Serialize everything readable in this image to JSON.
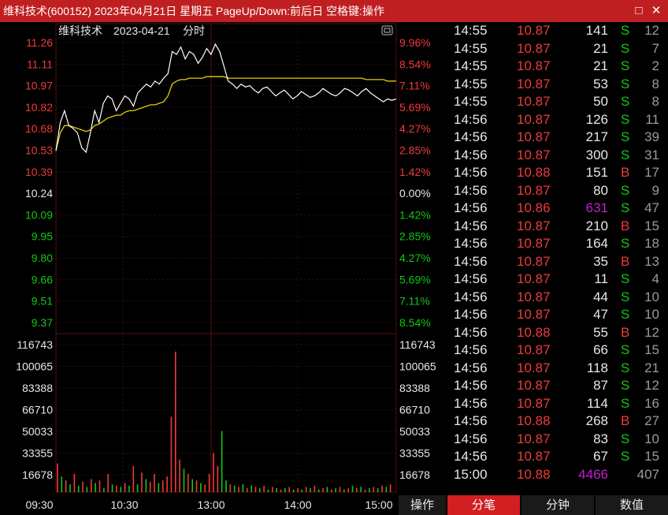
{
  "window": {
    "title": "维科技术(600152) 2023年04月21日 星期五 PageUp/Down:前后日 空格键:操作",
    "maximize_icon": "□",
    "close_icon": "✕"
  },
  "chart_header": {
    "stock_name": "维科技术",
    "date": "2023-04-21",
    "mode": "分时"
  },
  "colors": {
    "up": "#f03a3a",
    "down": "#12c812",
    "price_line": "#ffffff",
    "avg_line": "#e0d000",
    "title_bar": "#c01f21",
    "active_tab": "#d11f22"
  },
  "chart_data": {
    "type": "line",
    "title": "",
    "prev_close": 10.24,
    "price_axis": {
      "left_labels": [
        "11.26",
        "11.11",
        "10.97",
        "10.82",
        "10.68",
        "10.53",
        "10.39",
        "10.24",
        "10.09",
        "9.95",
        "9.80",
        "9.66",
        "9.51",
        "9.37"
      ],
      "right_labels": [
        "9.96%",
        "8.54%",
        "7.11%",
        "5.69%",
        "4.27%",
        "2.85%",
        "1.42%",
        "0.00%",
        "1.42%",
        "2.85%",
        "4.27%",
        "5.69%",
        "7.11%",
        "8.54%"
      ]
    },
    "volume_axis": {
      "labels": [
        "116743",
        "100065",
        "83388",
        "66710",
        "50033",
        "33355",
        "16678"
      ],
      "ylim": [
        0,
        125000
      ]
    },
    "time_labels": [
      "09:30",
      "10:30",
      "13:00",
      "14:00",
      "15:00"
    ],
    "price_series": [
      10.53,
      10.72,
      10.8,
      10.7,
      10.68,
      10.65,
      10.55,
      10.52,
      10.65,
      10.8,
      10.72,
      10.85,
      10.9,
      10.88,
      10.8,
      10.85,
      10.9,
      10.88,
      10.83,
      10.92,
      10.95,
      10.98,
      10.96,
      11.0,
      10.98,
      11.02,
      11.05,
      11.2,
      11.18,
      11.23,
      11.15,
      11.2,
      11.18,
      11.12,
      11.16,
      11.22,
      11.18,
      11.25,
      11.2,
      11.1,
      11.0,
      10.98,
      10.95,
      10.98,
      10.96,
      10.97,
      10.94,
      10.92,
      10.95,
      10.96,
      10.93,
      10.9,
      10.92,
      10.94,
      10.91,
      10.88,
      10.9,
      10.93,
      10.91,
      10.89,
      10.9,
      10.92,
      10.95,
      10.93,
      10.91,
      10.9,
      10.92,
      10.95,
      10.94,
      10.92,
      10.9,
      10.93,
      10.95,
      10.92,
      10.9,
      10.88,
      10.86,
      10.88,
      10.87,
      10.88
    ],
    "avg_series": [
      10.53,
      10.65,
      10.7,
      10.7,
      10.69,
      10.68,
      10.67,
      10.66,
      10.67,
      10.7,
      10.71,
      10.73,
      10.75,
      10.76,
      10.77,
      10.77,
      10.79,
      10.8,
      10.8,
      10.81,
      10.82,
      10.83,
      10.84,
      10.84,
      10.85,
      10.86,
      10.9,
      10.98,
      11.0,
      11.01,
      11.01,
      11.02,
      11.02,
      11.02,
      11.02,
      11.03,
      11.03,
      11.03,
      11.03,
      11.03,
      11.02,
      11.02,
      11.02,
      11.02,
      11.02,
      11.02,
      11.02,
      11.02,
      11.02,
      11.02,
      11.02,
      11.02,
      11.02,
      11.02,
      11.02,
      11.02,
      11.02,
      11.02,
      11.02,
      11.02,
      11.02,
      11.02,
      11.02,
      11.02,
      11.02,
      11.02,
      11.02,
      11.02,
      11.02,
      11.02,
      11.02,
      11.02,
      11.01,
      11.01,
      11.01,
      11.01,
      11.01,
      11.0,
      11.0,
      11.0
    ],
    "volume_bars": [
      {
        "v": 22000,
        "up": true
      },
      {
        "v": 12000,
        "up": false
      },
      {
        "v": 9000,
        "up": true
      },
      {
        "v": 6000,
        "up": false
      },
      {
        "v": 14000,
        "up": true
      },
      {
        "v": 5000,
        "up": false
      },
      {
        "v": 8000,
        "up": true
      },
      {
        "v": 4000,
        "up": false
      },
      {
        "v": 10000,
        "up": true
      },
      {
        "v": 7000,
        "up": false
      },
      {
        "v": 9000,
        "up": true
      },
      {
        "v": 3000,
        "up": false
      },
      {
        "v": 14000,
        "up": true
      },
      {
        "v": 6000,
        "up": false
      },
      {
        "v": 5000,
        "up": true
      },
      {
        "v": 4000,
        "up": false
      },
      {
        "v": 7000,
        "up": true
      },
      {
        "v": 5000,
        "up": false
      },
      {
        "v": 20000,
        "up": true
      },
      {
        "v": 6000,
        "up": false
      },
      {
        "v": 15000,
        "up": true
      },
      {
        "v": 10000,
        "up": false
      },
      {
        "v": 8000,
        "up": true
      },
      {
        "v": 14000,
        "up": true
      },
      {
        "v": 7000,
        "up": false
      },
      {
        "v": 9000,
        "up": true
      },
      {
        "v": 12000,
        "up": true
      },
      {
        "v": 58000,
        "up": true
      },
      {
        "v": 108000,
        "up": true
      },
      {
        "v": 25000,
        "up": true
      },
      {
        "v": 18000,
        "up": false
      },
      {
        "v": 14000,
        "up": true
      },
      {
        "v": 10000,
        "up": false
      },
      {
        "v": 9000,
        "up": true
      },
      {
        "v": 7000,
        "up": false
      },
      {
        "v": 6000,
        "up": true
      },
      {
        "v": 14000,
        "up": true
      },
      {
        "v": 30000,
        "up": true
      },
      {
        "v": 20000,
        "up": true
      },
      {
        "v": 47000,
        "up": false
      },
      {
        "v": 9000,
        "up": false
      },
      {
        "v": 6000,
        "up": true
      },
      {
        "v": 5000,
        "up": false
      },
      {
        "v": 4000,
        "up": true
      },
      {
        "v": 6000,
        "up": false
      },
      {
        "v": 3000,
        "up": true
      },
      {
        "v": 5000,
        "up": false
      },
      {
        "v": 4000,
        "up": true
      },
      {
        "v": 3000,
        "up": false
      },
      {
        "v": 5000,
        "up": true
      },
      {
        "v": 2000,
        "up": false
      },
      {
        "v": 4000,
        "up": true
      },
      {
        "v": 3000,
        "up": false
      },
      {
        "v": 2000,
        "up": true
      },
      {
        "v": 3000,
        "up": false
      },
      {
        "v": 4000,
        "up": true
      },
      {
        "v": 2000,
        "up": false
      },
      {
        "v": 3000,
        "up": true
      },
      {
        "v": 2000,
        "up": false
      },
      {
        "v": 4000,
        "up": true
      },
      {
        "v": 3000,
        "up": false
      },
      {
        "v": 5000,
        "up": true
      },
      {
        "v": 2000,
        "up": false
      },
      {
        "v": 3000,
        "up": true
      },
      {
        "v": 4000,
        "up": false
      },
      {
        "v": 2000,
        "up": true
      },
      {
        "v": 3000,
        "up": false
      },
      {
        "v": 4000,
        "up": true
      },
      {
        "v": 2000,
        "up": false
      },
      {
        "v": 3000,
        "up": true
      },
      {
        "v": 5000,
        "up": false
      },
      {
        "v": 3000,
        "up": true
      },
      {
        "v": 4000,
        "up": false
      },
      {
        "v": 2000,
        "up": true
      },
      {
        "v": 3000,
        "up": false
      },
      {
        "v": 4000,
        "up": true
      },
      {
        "v": 3000,
        "up": false
      },
      {
        "v": 5000,
        "up": true
      },
      {
        "v": 4000,
        "up": false
      },
      {
        "v": 6000,
        "up": true
      }
    ]
  },
  "ticks": [
    {
      "time": "14:55",
      "price": "10.87",
      "volume": "141",
      "side": "S",
      "count": "12"
    },
    {
      "time": "14:55",
      "price": "10.87",
      "volume": "21",
      "side": "S",
      "count": "7"
    },
    {
      "time": "14:55",
      "price": "10.87",
      "volume": "21",
      "side": "S",
      "count": "2"
    },
    {
      "time": "14:55",
      "price": "10.87",
      "volume": "53",
      "side": "S",
      "count": "8"
    },
    {
      "time": "14:55",
      "price": "10.87",
      "volume": "50",
      "side": "S",
      "count": "8"
    },
    {
      "time": "14:56",
      "price": "10.87",
      "volume": "126",
      "side": "S",
      "count": "11"
    },
    {
      "time": "14:56",
      "price": "10.87",
      "volume": "217",
      "side": "S",
      "count": "39"
    },
    {
      "time": "14:56",
      "price": "10.87",
      "volume": "300",
      "side": "S",
      "count": "31"
    },
    {
      "time": "14:56",
      "price": "10.88",
      "volume": "151",
      "side": "B",
      "count": "17"
    },
    {
      "time": "14:56",
      "price": "10.87",
      "volume": "80",
      "side": "S",
      "count": "9"
    },
    {
      "time": "14:56",
      "price": "10.86",
      "volume": "631",
      "side": "S",
      "count": "47",
      "big": true
    },
    {
      "time": "14:56",
      "price": "10.87",
      "volume": "210",
      "side": "B",
      "count": "15"
    },
    {
      "time": "14:56",
      "price": "10.87",
      "volume": "164",
      "side": "S",
      "count": "18"
    },
    {
      "time": "14:56",
      "price": "10.87",
      "volume": "35",
      "side": "B",
      "count": "13"
    },
    {
      "time": "14:56",
      "price": "10.87",
      "volume": "11",
      "side": "S",
      "count": "4"
    },
    {
      "time": "14:56",
      "price": "10.87",
      "volume": "44",
      "side": "S",
      "count": "10"
    },
    {
      "time": "14:56",
      "price": "10.87",
      "volume": "47",
      "side": "S",
      "count": "10"
    },
    {
      "time": "14:56",
      "price": "10.88",
      "volume": "55",
      "side": "B",
      "count": "12"
    },
    {
      "time": "14:56",
      "price": "10.87",
      "volume": "66",
      "side": "S",
      "count": "15"
    },
    {
      "time": "14:56",
      "price": "10.87",
      "volume": "118",
      "side": "S",
      "count": "21"
    },
    {
      "time": "14:56",
      "price": "10.87",
      "volume": "87",
      "side": "S",
      "count": "12"
    },
    {
      "time": "14:56",
      "price": "10.87",
      "volume": "114",
      "side": "S",
      "count": "16"
    },
    {
      "time": "14:56",
      "price": "10.88",
      "volume": "268",
      "side": "B",
      "count": "27"
    },
    {
      "time": "14:56",
      "price": "10.87",
      "volume": "83",
      "side": "S",
      "count": "10"
    },
    {
      "time": "14:56",
      "price": "10.87",
      "volume": "67",
      "side": "S",
      "count": "15"
    },
    {
      "time": "15:00",
      "price": "10.88",
      "volume": "4466",
      "side": "",
      "count": "407",
      "big": true
    }
  ],
  "tabs": {
    "operate": "操作",
    "items": [
      "分笔",
      "分钟",
      "数值"
    ],
    "active": 0
  }
}
